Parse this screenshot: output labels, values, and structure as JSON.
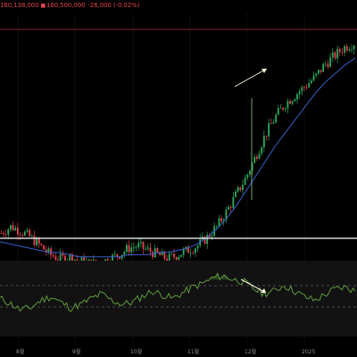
{
  "header": {
    "price_a": "160,138,000",
    "price_b": "160,500,000",
    "change": "-26,000 (-0.02%)"
  },
  "x_axis": {
    "labels": [
      "8월",
      "9월",
      "10월",
      "11월",
      "12월",
      "2025"
    ]
  },
  "colors": {
    "background": "#000000",
    "up_candle": "#2ea65d",
    "down_candle": "#e2434f",
    "moving_average": "#3860c9",
    "rsi_line": "#5f9a3c",
    "rsi_fill": "#3d6d2a",
    "annotation_arrow": "#f4f1d8",
    "price_line": "#e2434f"
  },
  "chart_data": {
    "type": "candlestick",
    "panels": [
      "price",
      "rsi"
    ],
    "x_axis_labels": [
      "8월",
      "9월",
      "10월",
      "11월",
      "12월",
      "2025"
    ],
    "last_price": 160138000,
    "price_ylim": [
      70000000,
      170000000
    ],
    "rsi_levels": [
      70,
      30
    ],
    "rsi_ylim": [
      10,
      90
    ],
    "series": [
      {
        "kind": "candles",
        "trend_points": [
          72,
          75,
          73,
          70,
          66,
          62,
          60,
          61,
          59,
          58,
          58,
          60,
          62,
          65,
          66,
          64,
          62,
          60,
          62,
          64,
          66,
          70,
          75,
          82,
          90,
          98,
          108,
          118,
          126,
          132,
          136,
          140,
          144,
          150,
          154,
          158,
          160
        ]
      },
      {
        "kind": "moving_average",
        "trend_points": [
          68,
          67,
          66,
          65,
          64,
          63,
          63,
          62,
          61,
          61,
          61,
          61,
          61,
          62,
          62,
          62,
          63,
          63,
          64,
          65,
          67,
          70,
          74,
          79,
          85,
          92,
          99,
          106,
          113,
          119,
          125,
          131,
          137,
          142,
          146,
          150,
          153
        ]
      }
    ],
    "annotations": [
      {
        "panel": "price",
        "kind": "arrow",
        "direction": "up-right"
      },
      {
        "panel": "rsi",
        "kind": "arrow",
        "direction": "down-right"
      }
    ]
  }
}
